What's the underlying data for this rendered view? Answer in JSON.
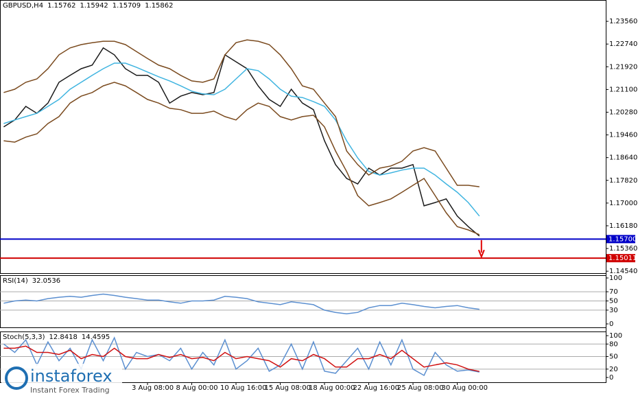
{
  "chart_data": [
    {
      "type": "line",
      "title": "GBPUSD,H4",
      "ohlc": [
        1.15762,
        1.15942,
        1.15709,
        1.15862
      ],
      "categories": [
        null,
        null,
        null,
        null,
        null,
        null,
        null,
        null,
        null,
        null,
        null,
        null,
        null,
        "3 Aug 08:00",
        null,
        null,
        null,
        "8 Aug 00:00",
        null,
        null,
        null,
        "10 Aug 16:00",
        null,
        null,
        null,
        "15 Aug 08:00",
        null,
        null,
        null,
        "18 Aug 00:00",
        null,
        null,
        null,
        "22 Aug 16:00",
        null,
        null,
        null,
        "25 Aug 08:00",
        null,
        null,
        null,
        "30 Aug 00:00",
        null,
        null
      ],
      "series": [
        {
          "color": "#1a1a1a",
          "values": [
            1.1975,
            1.2,
            1.2049,
            1.2024,
            1.2061,
            1.2136,
            1.2161,
            1.2185,
            1.2198,
            1.226,
            1.2235,
            1.2185,
            1.2161,
            1.2161,
            1.2136,
            1.2061,
            1.2086,
            1.2099,
            1.2091,
            1.2099,
            1.2235,
            1.221,
            1.2185,
            1.2123,
            1.2074,
            1.2049,
            1.2111,
            1.2061,
            1.2037,
            1.1925,
            1.1839,
            1.1789,
            1.1769,
            1.1826,
            1.1801,
            1.1826,
            1.1826,
            1.1839,
            1.169,
            1.1702,
            1.1715,
            1.1653,
            1.1615,
            1.1581
          ]
        },
        {
          "color": "#3fb4e0",
          "values": [
            1.1987,
            1.2,
            1.2012,
            1.2024,
            1.2049,
            1.2074,
            1.2111,
            1.2136,
            1.2161,
            1.2185,
            1.2205,
            1.2205,
            1.219,
            1.2173,
            1.2156,
            1.2141,
            1.2123,
            1.2104,
            1.2094,
            1.2091,
            1.2111,
            1.2148,
            1.2185,
            1.2178,
            1.2148,
            1.2111,
            1.2086,
            1.2081,
            1.2066,
            1.2049,
            1.2,
            1.1925,
            1.1863,
            1.1814,
            1.1801,
            1.1809,
            1.1819,
            1.1826,
            1.1826,
            1.1801,
            1.1769,
            1.1739,
            1.1702,
            1.1653
          ]
        },
        {
          "color": "#7a4a1e",
          "values": [
            1.2099,
            1.2111,
            1.2136,
            1.2148,
            1.2185,
            1.2235,
            1.226,
            1.2272,
            1.2279,
            1.2284,
            1.2284,
            1.2272,
            1.2247,
            1.2222,
            1.2198,
            1.2185,
            1.2161,
            1.2141,
            1.2136,
            1.2148,
            1.2235,
            1.2279,
            1.2289,
            1.2284,
            1.2272,
            1.2235,
            1.2185,
            1.2123,
            1.2111,
            1.2061,
            1.2012,
            1.1888,
            1.1839,
            1.1801,
            1.1826,
            1.1834,
            1.1851,
            1.1888,
            1.19,
            1.1888,
            1.1826,
            1.1764,
            1.1764,
            1.1759
          ]
        },
        {
          "color": "#7a4a1e",
          "values": [
            1.1925,
            1.192,
            1.1938,
            1.195,
            1.1987,
            1.2012,
            1.2061,
            1.2086,
            1.2099,
            1.2123,
            1.2136,
            1.2123,
            1.2099,
            1.2074,
            1.2061,
            1.2042,
            1.2037,
            1.2024,
            1.2024,
            1.2032,
            1.2012,
            1.2,
            1.2037,
            1.2061,
            1.2049,
            1.2012,
            1.2,
            1.2012,
            1.2017,
            1.1975,
            1.1888,
            1.1814,
            1.1727,
            1.169,
            1.1702,
            1.1715,
            1.1739,
            1.1764,
            1.1789,
            1.1727,
            1.1665,
            1.1615,
            1.1603,
            1.1586
          ]
        }
      ],
      "levels": [
        {
          "value": 1.157,
          "label": "1.15700",
          "color": "#0000c8"
        },
        {
          "value": 1.15011,
          "label": "1.15011",
          "color": "#d00000"
        }
      ],
      "ylim": [
        1.1447,
        1.2433
      ],
      "yticks": [
        {
          "value": 1.2356,
          "label": "1.23560"
        },
        {
          "value": 1.2274,
          "label": "1.22740"
        },
        {
          "value": 1.2192,
          "label": "1.21920"
        },
        {
          "value": 1.211,
          "label": "1.21100"
        },
        {
          "value": 1.2028,
          "label": "1.20280"
        },
        {
          "value": 1.1946,
          "label": "1.19460"
        },
        {
          "value": 1.1864,
          "label": "1.18640"
        },
        {
          "value": 1.1782,
          "label": "1.17820"
        },
        {
          "value": 1.17,
          "label": "1.17000"
        },
        {
          "value": 1.1618,
          "label": "1.16180"
        },
        {
          "value": 1.1536,
          "label": "1.15360"
        },
        {
          "value": 1.1454,
          "label": "1.14540"
        }
      ]
    },
    {
      "type": "line",
      "title": "RSI(14)",
      "current_values": [
        32.0536
      ],
      "series": [
        {
          "color": "#5b8fd0",
          "values": [
            45,
            50,
            52,
            50,
            55,
            58,
            60,
            58,
            62,
            65,
            62,
            58,
            55,
            52,
            52,
            48,
            45,
            50,
            50,
            52,
            60,
            58,
            55,
            48,
            45,
            42,
            48,
            45,
            42,
            30,
            25,
            22,
            25,
            35,
            40,
            40,
            45,
            42,
            38,
            35,
            38,
            40,
            35,
            32
          ]
        }
      ],
      "ylim": [
        -7.5,
        106
      ],
      "yticks": [
        100,
        70,
        50,
        30,
        0
      ],
      "levels": [
        70,
        50,
        30
      ]
    },
    {
      "type": "line",
      "title": "Stoch(5,3,3)",
      "current_values": [
        12.8418,
        14.4595
      ],
      "series": [
        {
          "color": "#5b8fd0",
          "values": [
            80,
            60,
            90,
            30,
            85,
            40,
            70,
            20,
            90,
            40,
            95,
            20,
            60,
            50,
            55,
            40,
            70,
            20,
            60,
            30,
            90,
            20,
            40,
            70,
            15,
            30,
            80,
            20,
            85,
            15,
            10,
            40,
            70,
            20,
            85,
            30,
            90,
            20,
            5,
            60,
            30,
            15,
            18,
            12.8418
          ]
        },
        {
          "color": "#d01010",
          "values": [
            70,
            70,
            75,
            60,
            60,
            55,
            65,
            45,
            55,
            50,
            70,
            50,
            45,
            45,
            55,
            48,
            55,
            45,
            48,
            40,
            60,
            45,
            50,
            45,
            40,
            25,
            45,
            40,
            55,
            45,
            25,
            25,
            45,
            45,
            55,
            45,
            65,
            45,
            25,
            30,
            35,
            30,
            20,
            14.4595
          ]
        }
      ],
      "ylim": [
        -11.5,
        110
      ],
      "yticks": [
        100,
        80,
        50,
        20,
        0
      ],
      "levels": [
        80,
        50,
        20
      ]
    }
  ],
  "logo": {
    "name": "instaforex",
    "tagline": "Instant Forex Trading"
  }
}
